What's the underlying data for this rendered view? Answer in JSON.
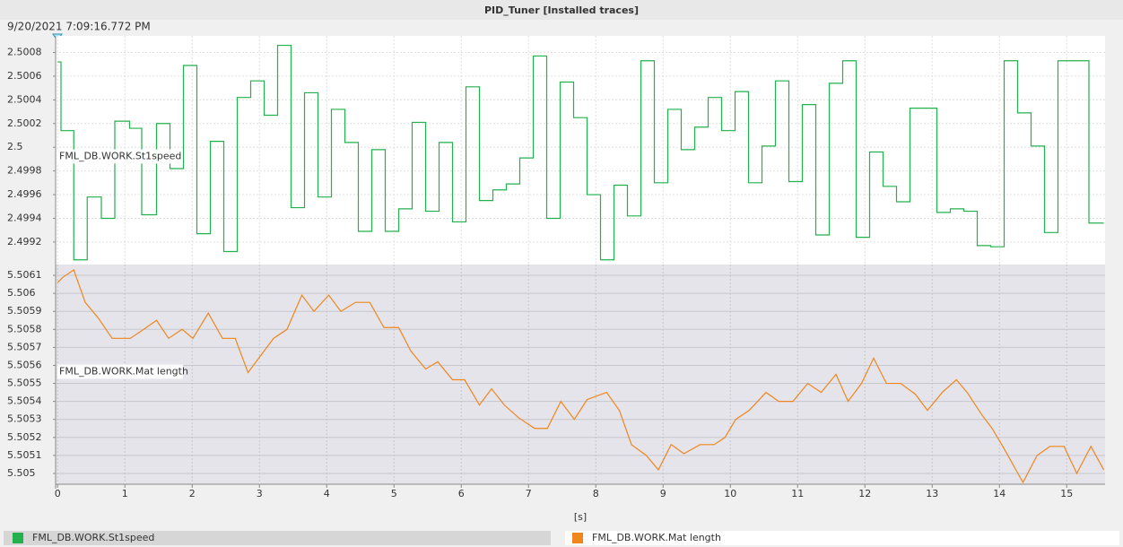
{
  "title": "PID_Tuner [Installed traces]",
  "timestamp": "9/20/2021  7:09:16.772 PM",
  "chart_data": [
    {
      "type": "step",
      "series": [
        {
          "name": "FML_DB.WORK.St1speed",
          "color": "#22b14c",
          "x": [
            0,
            0.05,
            0.24,
            0.44,
            0.65,
            0.85,
            1.07,
            1.25,
            1.47,
            1.67,
            1.87,
            2.07,
            2.27,
            2.47,
            2.67,
            2.87,
            3.07,
            3.27,
            3.47,
            3.67,
            3.87,
            4.07,
            4.27,
            4.47,
            4.67,
            4.87,
            5.07,
            5.27,
            5.47,
            5.67,
            5.87,
            6.07,
            6.27,
            6.47,
            6.67,
            6.87,
            7.07,
            7.27,
            7.47,
            7.67,
            7.87,
            8.07,
            8.27,
            8.47,
            8.67,
            8.87,
            9.07,
            9.27,
            9.47,
            9.67,
            9.87,
            10.07,
            10.27,
            10.47,
            10.67,
            10.87,
            11.07,
            11.27,
            11.47,
            11.67,
            11.87,
            12.07,
            12.27,
            12.47,
            12.67,
            13.07,
            13.27,
            13.47,
            13.67,
            13.87,
            14.07,
            14.27,
            14.47,
            14.67,
            14.87,
            15.33,
            15.55
          ],
          "values": [
            2.50072,
            2.50014,
            2.49905,
            2.49958,
            2.4994,
            2.50022,
            2.50016,
            2.49943,
            2.5002,
            2.49982,
            2.50069,
            2.49927,
            2.50005,
            2.49912,
            2.50042,
            2.50056,
            2.50027,
            2.50086,
            2.49949,
            2.50046,
            2.49958,
            2.50032,
            2.50004,
            2.49929,
            2.49998,
            2.49929,
            2.49948,
            2.50021,
            2.49946,
            2.50004,
            2.49937,
            2.50051,
            2.49955,
            2.49964,
            2.49969,
            2.49991,
            2.50077,
            2.4994,
            2.50055,
            2.50025,
            2.4996,
            2.49905,
            2.49968,
            2.49942,
            2.50073,
            2.4997,
            2.50032,
            2.49998,
            2.50017,
            2.50042,
            2.50014,
            2.50047,
            2.4997,
            2.50001,
            2.50056,
            2.49971,
            2.50036,
            2.49926,
            2.50054,
            2.50073,
            2.49924,
            2.49996,
            2.49967,
            2.49954,
            2.50033,
            2.49945,
            2.49948,
            2.49946,
            2.49917,
            2.49916,
            2.50073,
            2.50029,
            2.50001,
            2.49928,
            2.50073,
            2.49936,
            2.49936
          ]
        }
      ],
      "xlim": [
        -0.03,
        15.57
      ],
      "ylim": [
        2.49901,
        2.50094
      ],
      "yticks": [
        2.4992,
        2.4994,
        2.4996,
        2.4998,
        2.5,
        2.5002,
        2.5004,
        2.5006,
        2.5008
      ]
    },
    {
      "type": "line",
      "series": [
        {
          "name": "FML_DB.WORK.Mat length",
          "color": "#f0861e",
          "x": [
            0,
            0.08,
            0.24,
            0.41,
            0.61,
            0.81,
            1.08,
            1.28,
            1.47,
            1.65,
            1.85,
            2.01,
            2.24,
            2.45,
            2.64,
            2.83,
            3.01,
            3.21,
            3.41,
            3.63,
            3.81,
            4.03,
            4.21,
            4.43,
            4.64,
            4.85,
            5.07,
            5.25,
            5.47,
            5.65,
            5.87,
            6.05,
            6.27,
            6.45,
            6.64,
            6.85,
            7.09,
            7.28,
            7.48,
            7.68,
            7.87,
            8.16,
            8.35,
            8.53,
            8.75,
            8.93,
            9.12,
            9.31,
            9.55,
            9.76,
            9.92,
            10.08,
            10.28,
            10.53,
            10.72,
            10.93,
            11.15,
            11.35,
            11.57,
            11.75,
            11.95,
            12.13,
            12.32,
            12.53,
            12.75,
            12.93,
            13.15,
            13.36,
            13.52,
            13.73,
            13.89,
            14.05,
            14.35,
            14.56,
            14.75,
            14.96,
            15.15,
            15.36,
            15.55
          ],
          "values": [
            5.50606,
            5.50609,
            5.50613,
            5.50595,
            5.50586,
            5.50575,
            5.50575,
            5.5058,
            5.50585,
            5.50575,
            5.5058,
            5.50575,
            5.50589,
            5.50575,
            5.50575,
            5.50556,
            5.50565,
            5.50575,
            5.5058,
            5.50599,
            5.5059,
            5.50599,
            5.5059,
            5.50595,
            5.50595,
            5.50581,
            5.50581,
            5.50568,
            5.50558,
            5.50562,
            5.50552,
            5.50552,
            5.50538,
            5.50547,
            5.50538,
            5.50531,
            5.50525,
            5.50525,
            5.5054,
            5.5053,
            5.50541,
            5.50545,
            5.50535,
            5.50516,
            5.5051,
            5.50502,
            5.50516,
            5.50511,
            5.50516,
            5.50516,
            5.5052,
            5.5053,
            5.50535,
            5.50545,
            5.5054,
            5.5054,
            5.5055,
            5.50545,
            5.50555,
            5.5054,
            5.5055,
            5.50564,
            5.5055,
            5.5055,
            5.50544,
            5.50535,
            5.50545,
            5.50552,
            5.50545,
            5.50533,
            5.50525,
            5.50515,
            5.50495,
            5.5051,
            5.50515,
            5.50515,
            5.505,
            5.50515,
            5.50502
          ]
        }
      ],
      "xlim": [
        -0.03,
        15.57
      ],
      "xticks": [
        0,
        1,
        2,
        3,
        4,
        5,
        6,
        7,
        8,
        9,
        10,
        11,
        12,
        13,
        14,
        15
      ],
      "xlabel": "[s]",
      "ylim": [
        5.50494,
        5.50616
      ],
      "yticks": [
        5.505,
        5.5051,
        5.5052,
        5.5053,
        5.5054,
        5.5055,
        5.5056,
        5.5057,
        5.5058,
        5.5059,
        5.506,
        5.5061
      ]
    }
  ]
}
